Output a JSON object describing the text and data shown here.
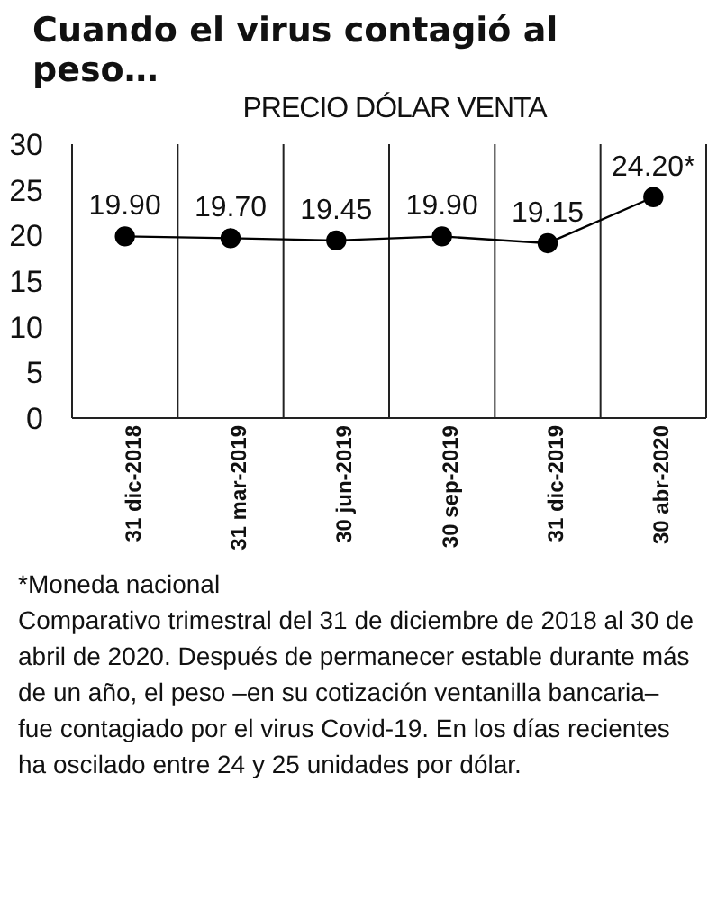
{
  "chart_data": {
    "type": "line",
    "title": "Cuando el virus contagió al peso…",
    "subtitle": "PRECIO DÓLAR VENTA",
    "categories": [
      "31 dic-2018",
      "31 mar-2019",
      "30 jun-2019",
      "30 sep-2019",
      "31 dic-2019",
      "30 abr-2020"
    ],
    "series": [
      {
        "color": "#000000",
        "values": [
          19.9,
          19.7,
          19.45,
          19.9,
          19.15,
          24.2
        ],
        "value_labels": [
          "19.90",
          "19.70",
          "19.45",
          "19.90",
          "19.15",
          "24.20*"
        ]
      }
    ],
    "ylim": [
      0,
      30
    ],
    "yticks": [
      0,
      5,
      10,
      15,
      20,
      25,
      30
    ],
    "grid": "x",
    "marker": "circle",
    "line_style": "solid",
    "legend": false,
    "annotations": [
      "*Moneda nacional",
      "Comparativo trimestral del 31 de diciembre de 2018 al 30 de abril de 2020. Después de permanecer estable durante más de un año, el peso –en su cotización ventanilla bancaria– fue contagiado por el virus Covid-19. En los días recientes ha oscilado entre 24 y 25 unidades por dólar."
    ]
  }
}
